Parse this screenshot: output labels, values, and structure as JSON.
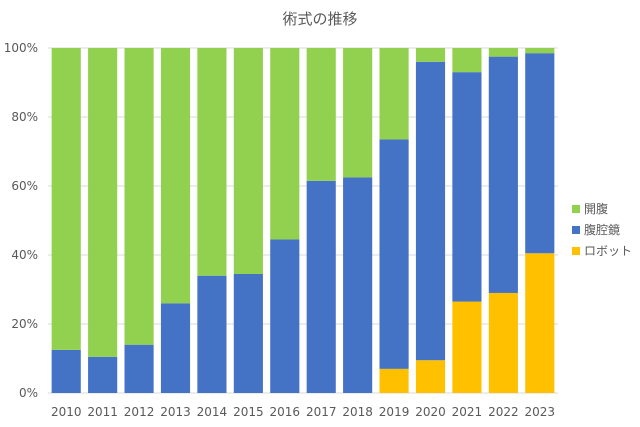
{
  "chart_data": {
    "type": "bar",
    "stacked": true,
    "title": "術式の推移",
    "xlabel": "",
    "ylabel": "",
    "ylim": [
      0,
      100
    ],
    "yticks": [
      "0%",
      "20%",
      "40%",
      "60%",
      "80%",
      "100%"
    ],
    "grid": true,
    "legend_position": "right",
    "categories": [
      "2010",
      "2011",
      "2012",
      "2013",
      "2014",
      "2015",
      "2016",
      "2017",
      "2018",
      "2019",
      "2020",
      "2021",
      "2022",
      "2023"
    ],
    "series": [
      {
        "name": "ロボット",
        "color": "#ffc000",
        "values": [
          0,
          0,
          0,
          0,
          0,
          0,
          0,
          0,
          0,
          7,
          9.5,
          26.5,
          29,
          40.5
        ]
      },
      {
        "name": "腹腔鏡",
        "color": "#4472c4",
        "values": [
          12.5,
          10.5,
          14,
          26,
          34,
          34.5,
          44.5,
          61.5,
          62.5,
          66.5,
          86.5,
          66.5,
          68.5,
          58
        ]
      },
      {
        "name": "開腹",
        "color": "#92d050",
        "values": [
          87.5,
          89.5,
          86,
          74,
          66,
          65.5,
          55.5,
          38.5,
          37.5,
          26.5,
          4,
          7,
          2.5,
          1.5
        ]
      }
    ],
    "legend_order": [
      "開腹",
      "腹腔鏡",
      "ロボット"
    ]
  }
}
